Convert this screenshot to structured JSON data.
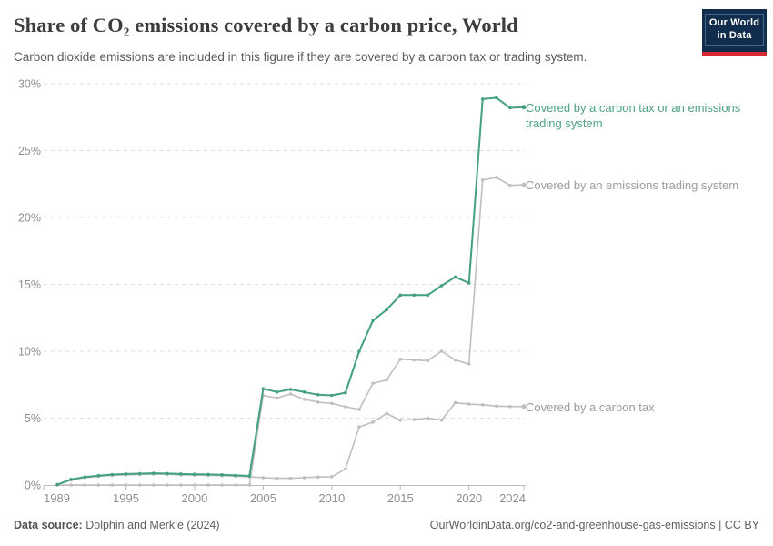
{
  "header": {
    "logo": {
      "line1": "Our World",
      "line2": "in Data",
      "bg_color": "#102d4e",
      "accent_color": "#d7282f"
    }
  },
  "footer": {
    "source_label": "Data source:",
    "source_value": "Dolphin and Merkle (2024)",
    "attribution": "OurWorldinData.org/co2-and-greenhouse-gas-emissions | CC BY"
  },
  "chart_data": {
    "type": "line",
    "title": "Share of CO₂ emissions covered by a carbon price, World",
    "subtitle": "Carbon dioxide emissions are included in this figure if they are covered by a carbon tax or trading system.",
    "x": [
      1989,
      1990,
      1991,
      1992,
      1993,
      1994,
      1995,
      1996,
      1997,
      1998,
      1999,
      2000,
      2001,
      2002,
      2003,
      2004,
      2005,
      2006,
      2007,
      2008,
      2009,
      2010,
      2011,
      2012,
      2013,
      2014,
      2015,
      2016,
      2017,
      2018,
      2019,
      2020,
      2021,
      2022,
      2023,
      2024
    ],
    "xticks": [
      1989,
      1995,
      2000,
      2005,
      2010,
      2015,
      2020,
      2024
    ],
    "yticks": [
      0,
      5,
      10,
      15,
      20,
      25,
      30
    ],
    "ytick_suffix": "%",
    "ylim": [
      0,
      30
    ],
    "x_range": [
      1989,
      2024
    ],
    "grid": "horizontal-dashed",
    "legend_position": "right-of-line-end",
    "series": [
      {
        "id": "combined",
        "name": "Covered by a carbon tax or an emissions trading system",
        "color": "#43a17d",
        "label_color": "#4ea287",
        "line_width": 2,
        "values": [
          null,
          0.03,
          0.42,
          0.6,
          0.7,
          0.78,
          0.82,
          0.85,
          0.88,
          0.86,
          0.82,
          0.8,
          0.79,
          0.76,
          0.72,
          0.68,
          7.2,
          6.95,
          7.15,
          6.95,
          6.75,
          6.7,
          6.9,
          10.0,
          12.3,
          13.1,
          14.2,
          14.2,
          14.2,
          14.9,
          15.55,
          15.1,
          28.85,
          28.95,
          28.2,
          28.25
        ]
      },
      {
        "id": "ets",
        "name": "Covered by an emissions trading system",
        "color": "#bfbfbf",
        "label_color": "#9c9c9c",
        "line_width": 1.6,
        "values": [
          null,
          0,
          0,
          0,
          0,
          0,
          0,
          0,
          0,
          0,
          0,
          0,
          0,
          0,
          0,
          0,
          6.7,
          6.5,
          6.8,
          6.4,
          6.2,
          6.1,
          5.85,
          5.65,
          7.6,
          7.85,
          9.4,
          9.35,
          9.3,
          10.0,
          9.35,
          9.05,
          22.8,
          23.0,
          22.4,
          22.45
        ]
      },
      {
        "id": "tax",
        "name": "Covered by a carbon tax",
        "color": "#bfbfbf",
        "label_color": "#9c9c9c",
        "line_width": 1.6,
        "values": [
          null,
          0.03,
          0.38,
          0.55,
          0.65,
          0.72,
          0.76,
          0.79,
          0.82,
          0.8,
          0.76,
          0.74,
          0.73,
          0.7,
          0.66,
          0.62,
          0.55,
          0.5,
          0.5,
          0.55,
          0.6,
          0.62,
          1.2,
          4.35,
          4.7,
          5.35,
          4.85,
          4.9,
          5.0,
          4.85,
          6.15,
          6.05,
          6.0,
          5.9,
          5.87,
          5.87
        ]
      }
    ],
    "axis_color": "#bcbcbc",
    "grid_color": "#e0e0e0",
    "tick_label_color": "#8f8f8f"
  }
}
